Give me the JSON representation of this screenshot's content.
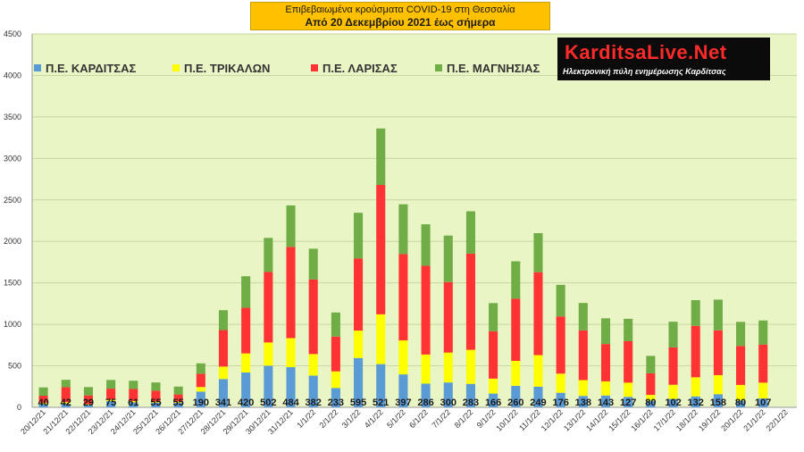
{
  "title": {
    "line1": "Επιβεβαιωμένα κρούσματα COVID-19 στη Θεσσαλία",
    "line2": "Από 20 Δεκεμβρίου 2021 έως σήμερα"
  },
  "logo": {
    "brand": "KarditsaLive.Net",
    "tagline": "Ηλεκτρονική πύλη ενημέρωσης Καρδίτσας"
  },
  "colors": {
    "plot_background": "#e9f5c4",
    "grid": "#c8d6a0",
    "karditsa": "#5b9bd5",
    "trikala": "#ffff00",
    "larisa": "#ff3333",
    "magnisia": "#70ad47"
  },
  "chart_data": {
    "type": "bar",
    "stacked": true,
    "ylim": [
      0,
      4500
    ],
    "yticks": [
      0,
      500,
      1000,
      1500,
      2000,
      2500,
      3000,
      3500,
      4000,
      4500
    ],
    "grid": true,
    "legend_position": "top-left",
    "categories": [
      "20/12/21",
      "21/12/21",
      "22/12/21",
      "23/12/21",
      "24/12/21",
      "25/12/21",
      "26/12/21",
      "27/12/21",
      "28/12/21",
      "29/12/21",
      "30/12/21",
      "31/12/21",
      "1/1/22",
      "2/1/22",
      "3/1/22",
      "4/1/22",
      "5/1/22",
      "6/1/22",
      "7/1/22",
      "8/1/22",
      "9/1/22",
      "10/1/22",
      "11/1/22",
      "12/1/22",
      "13/1/22",
      "14/1/22",
      "15/1/22",
      "16/1/22",
      "17/1/22",
      "18/1/22",
      "19/1/22",
      "20/1/22",
      "21/1/22",
      "22/1/22"
    ],
    "series": [
      {
        "name": "Π.Ε. ΚΑΡΔΙΤΣΑΣ",
        "color": "#5b9bd5",
        "values": [
          40,
          42,
          29,
          75,
          61,
          55,
          55,
          190,
          341,
          420,
          502,
          484,
          382,
          233,
          595,
          521,
          397,
          286,
          300,
          283,
          166,
          260,
          249,
          176,
          138,
          143,
          127,
          80,
          102,
          132,
          158,
          80,
          107,
          null
        ]
      },
      {
        "name": "Π.Ε. ΤΡΙΚΑΛΩΝ",
        "color": "#ffff00",
        "values": [
          15,
          20,
          10,
          20,
          15,
          15,
          15,
          55,
          150,
          230,
          280,
          350,
          260,
          200,
          330,
          600,
          410,
          350,
          360,
          410,
          180,
          300,
          380,
          230,
          190,
          170,
          170,
          70,
          170,
          230,
          230,
          190,
          190,
          null
        ]
      },
      {
        "name": "Π.Ε. ΛΑΡΙΣΑΣ",
        "color": "#ff3333",
        "values": [
          85,
          180,
          105,
          130,
          145,
          130,
          85,
          160,
          440,
          550,
          850,
          1100,
          900,
          420,
          870,
          1560,
          1040,
          1070,
          850,
          1160,
          570,
          750,
          1000,
          690,
          600,
          450,
          500,
          260,
          450,
          620,
          540,
          470,
          460,
          null
        ]
      },
      {
        "name": "Π.Ε. ΜΑΓΝΗΣΙΑΣ",
        "color": "#70ad47",
        "values": [
          100,
          90,
          100,
          105,
          100,
          100,
          95,
          125,
          240,
          380,
          410,
          500,
          370,
          290,
          550,
          680,
          600,
          500,
          560,
          510,
          340,
          450,
          470,
          380,
          330,
          310,
          270,
          210,
          310,
          310,
          370,
          290,
          290,
          null
        ]
      }
    ],
    "data_labels": [
      "40",
      "42",
      "29",
      "75",
      "61",
      "55",
      "55",
      "190",
      "341",
      "420",
      "502",
      "484",
      "382",
      "233",
      "595",
      "521",
      "397",
      "286",
      "300",
      "283",
      "166",
      "260",
      "249",
      "176",
      "138",
      "143",
      "127",
      "80",
      "102",
      "132",
      "158",
      "80",
      "107",
      ""
    ]
  }
}
